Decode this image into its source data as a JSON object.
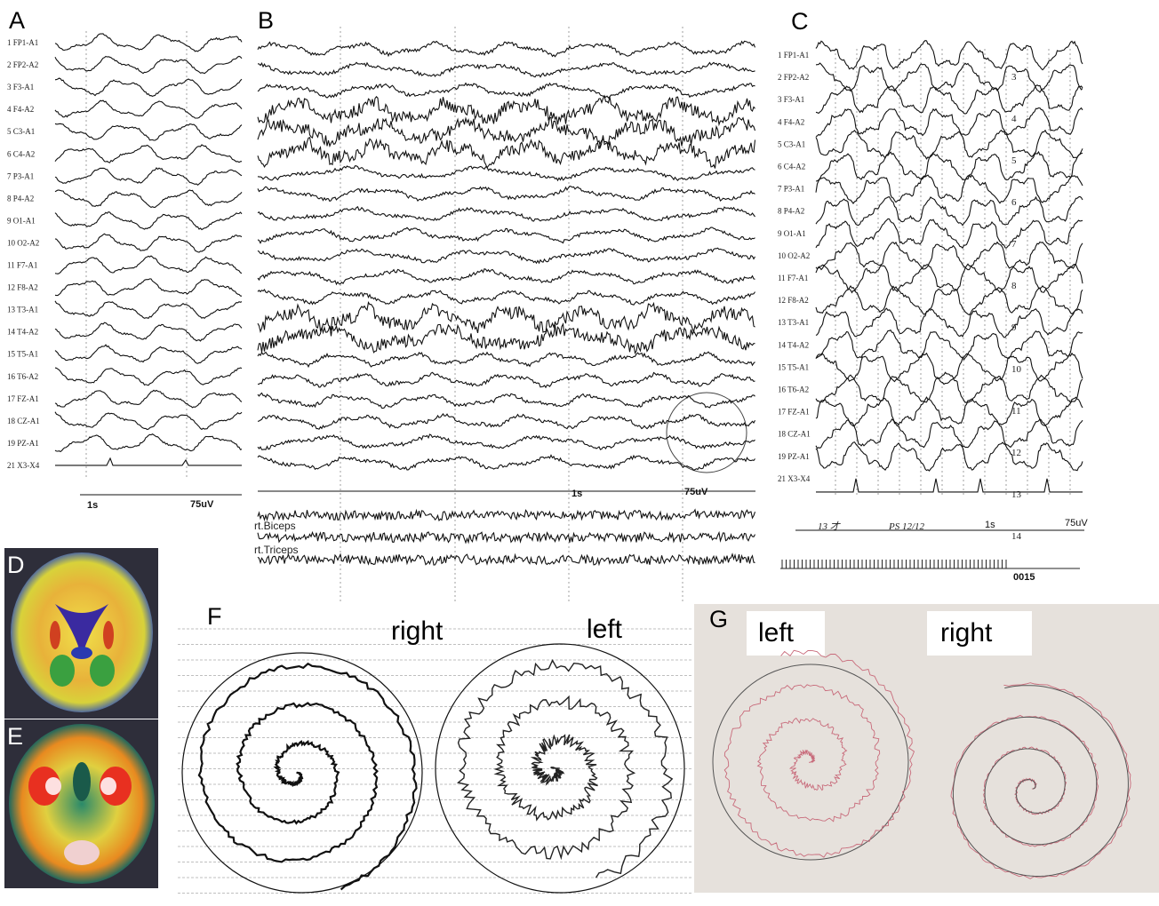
{
  "panels": [
    {
      "label": "A",
      "channels": [
        "1 FP1-A1",
        "2 FP2-A2",
        "3 F3-A1",
        "4 F4-A2",
        "5 C3-A1",
        "6 C4-A2",
        "7 P3-A1",
        "8 P4-A2",
        "9 O1-A1",
        "10 O2-A2",
        "11 F7-A1",
        "12 F8-A2",
        "13 T3-A1",
        "14 T4-A2",
        "15 T5-A1",
        "16 T6-A2",
        "17 FZ-A1",
        "18 CZ-A1",
        "19 PZ-A1",
        "21 X3-X4"
      ],
      "scale": {
        "time": "1s",
        "amplitude": "75uV"
      }
    },
    {
      "label": "B",
      "scale": {
        "time": "1s",
        "amplitude": "75uV"
      },
      "emg_labels": [
        "rt.Biceps",
        "rt.Triceps"
      ]
    },
    {
      "label": "C",
      "channels": [
        "1 FP1-A1",
        "2 FP2-A2",
        "3 F3-A1",
        "4 F4-A2",
        "5 C3-A1",
        "6 C4-A2",
        "7 P3-A1",
        "8 P4-A2",
        "9 O1-A1",
        "10 O2-A2",
        "11 F7-A1",
        "12 F8-A2",
        "13 T3-A1",
        "14 T4-A2",
        "15 T5-A1",
        "16 T6-A2",
        "17 FZ-A1",
        "18 CZ-A1",
        "19 PZ-A1",
        "21 X3-X4"
      ],
      "page_numbers": [
        "3",
        "4",
        "5",
        "6",
        "7",
        "8",
        "9",
        "10",
        "11",
        "12",
        "13",
        "14"
      ],
      "handwritten": [
        "13 才",
        "PS 12/12"
      ],
      "scale": {
        "time": "1s",
        "amplitude": "75uV"
      },
      "counter": "0015"
    },
    {
      "label": "D"
    },
    {
      "label": "E"
    },
    {
      "label": "F",
      "sides": [
        "right",
        "left"
      ]
    },
    {
      "label": "G",
      "sides": [
        "left",
        "right"
      ]
    }
  ]
}
